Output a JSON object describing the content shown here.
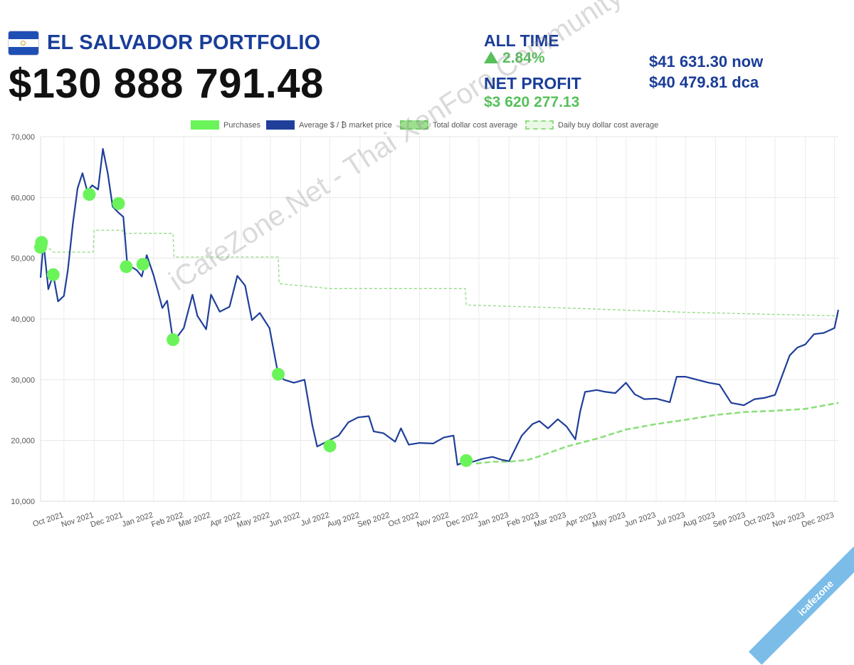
{
  "header": {
    "title": "EL SALVADOR PORTFOLIO",
    "total_value": "$130 888 791.48",
    "all_time_label": "ALL TIME",
    "all_time_change": "2.84%",
    "net_profit_label": "NET PROFIT",
    "net_profit_value": "$3 620 277.13",
    "price_now": "$41 631.30 now",
    "price_dca": "$40 479.81 dca"
  },
  "watermark": "iCafeZone.Net - Thai XenForo Community",
  "corner_badge": "icafezone",
  "colors": {
    "accent": "#1a3d99",
    "green": "#56c05a",
    "purchase": "#6af45a"
  },
  "chart_data": {
    "type": "line",
    "legend": [
      "Purchases",
      "Average $ / ₿ market price",
      "Total dollar cost average",
      "Daily buy dollar cost average"
    ],
    "legend_placement": "top",
    "ylim": [
      10000,
      70000
    ],
    "y_ticks": [
      "10,000",
      "20,000",
      "30,000",
      "40,000",
      "50,000",
      "60,000",
      "70,000"
    ],
    "x_ticks": [
      "Oct 2021",
      "Nov 2021",
      "Dec 2021",
      "Jan 2022",
      "Feb 2022",
      "Mar 2022",
      "Apr 2022",
      "May 2022",
      "Jun 2022",
      "Jul 2022",
      "Aug 2022",
      "Sep 2022",
      "Oct 2022",
      "Nov 2022",
      "Dec 2022",
      "Jan 2023",
      "Feb 2023",
      "Mar 2023",
      "Apr 2023",
      "May 2023",
      "Jun 2023",
      "Jul 2023",
      "Aug 2023",
      "Sep 2023",
      "Oct 2023",
      "Nov 2023",
      "Dec 2023"
    ],
    "grid": true,
    "series": [
      {
        "name": "Average $ / ₿ market price",
        "x": [
          "2021-09-07",
          "2021-09-10",
          "2021-09-15",
          "2021-09-20",
          "2021-09-25",
          "2021-10-01",
          "2021-10-05",
          "2021-10-10",
          "2021-10-15",
          "2021-10-20",
          "2021-10-25",
          "2021-10-30",
          "2021-11-05",
          "2021-11-10",
          "2021-11-15",
          "2021-11-20",
          "2021-11-26",
          "2021-12-01",
          "2021-12-05",
          "2021-12-10",
          "2021-12-15",
          "2021-12-20",
          "2021-12-25",
          "2022-01-01",
          "2022-01-10",
          "2022-01-15",
          "2022-01-21",
          "2022-01-25",
          "2022-02-01",
          "2022-02-10",
          "2022-02-15",
          "2022-02-24",
          "2022-03-01",
          "2022-03-10",
          "2022-03-20",
          "2022-03-28",
          "2022-04-05",
          "2022-04-12",
          "2022-04-20",
          "2022-04-30",
          "2022-05-09",
          "2022-05-15",
          "2022-05-25",
          "2022-06-05",
          "2022-06-13",
          "2022-06-18",
          "2022-06-30",
          "2022-07-10",
          "2022-07-20",
          "2022-07-30",
          "2022-08-10",
          "2022-08-15",
          "2022-08-25",
          "2022-09-06",
          "2022-09-12",
          "2022-09-20",
          "2022-10-01",
          "2022-10-15",
          "2022-10-26",
          "2022-11-05",
          "2022-11-09",
          "2022-11-17",
          "2022-11-25",
          "2022-12-05",
          "2022-12-15",
          "2022-12-25",
          "2023-01-01",
          "2023-01-14",
          "2023-01-25",
          "2023-02-01",
          "2023-02-10",
          "2023-02-20",
          "2023-03-01",
          "2023-03-10",
          "2023-03-15",
          "2023-03-20",
          "2023-04-01",
          "2023-04-10",
          "2023-04-20",
          "2023-05-01",
          "2023-05-10",
          "2023-05-20",
          "2023-06-01",
          "2023-06-15",
          "2023-06-22",
          "2023-07-01",
          "2023-07-13",
          "2023-07-25",
          "2023-08-05",
          "2023-08-17",
          "2023-08-30",
          "2023-09-10",
          "2023-09-20",
          "2023-10-01",
          "2023-10-16",
          "2023-10-24",
          "2023-11-01",
          "2023-11-10",
          "2023-11-20",
          "2023-12-01",
          "2023-12-05"
        ],
        "y": [
          46800,
          52600,
          44900,
          47300,
          42900,
          43800,
          48000,
          55500,
          61500,
          64000,
          61000,
          62000,
          61300,
          68000,
          64000,
          58500,
          57500,
          56800,
          49000,
          48500,
          48000,
          47000,
          50500,
          47200,
          41800,
          43000,
          36500,
          37000,
          38500,
          44000,
          40500,
          38300,
          44000,
          41200,
          42000,
          47100,
          45500,
          39800,
          41000,
          38500,
          30800,
          30000,
          29500,
          30000,
          22500,
          19000,
          20000,
          20800,
          23000,
          23800,
          24000,
          21500,
          21200,
          19800,
          22000,
          19300,
          19600,
          19500,
          20500,
          20800,
          16000,
          16500,
          16500,
          17000,
          17300,
          16800,
          16600,
          20800,
          22700,
          23200,
          22000,
          23500,
          22300,
          20200,
          24800,
          28000,
          28300,
          28000,
          27800,
          29500,
          27600,
          26800,
          26900,
          26300,
          30500,
          30500,
          30000,
          29500,
          29200,
          26200,
          25800,
          26800,
          27000,
          27500,
          34000,
          35300,
          35800,
          37500,
          37700,
          38500,
          41500
        ]
      },
      {
        "name": "Total dollar cost average",
        "x": [
          "2022-11-28",
          "2022-12-15",
          "2023-01-01",
          "2023-01-20",
          "2023-02-01",
          "2023-03-01",
          "2023-04-01",
          "2023-05-01",
          "2023-06-01",
          "2023-07-01",
          "2023-08-01",
          "2023-09-01",
          "2023-10-01",
          "2023-11-01",
          "2023-12-05"
        ],
        "y": [
          16200,
          16500,
          16500,
          16800,
          17400,
          19000,
          20300,
          21800,
          22700,
          23400,
          24200,
          24700,
          24900,
          25200,
          26200
        ]
      },
      {
        "name": "Daily buy dollar cost average",
        "x": [
          "2021-09-07",
          "2021-09-12",
          "2021-09-20",
          "2021-10-31",
          "2021-11-01",
          "2021-11-30",
          "2021-12-01",
          "2022-01-21",
          "2022-01-22",
          "2022-05-09",
          "2022-05-10",
          "2022-07-01",
          "2022-11-17",
          "2022-11-18",
          "2023-03-01",
          "2023-07-01",
          "2023-12-05"
        ],
        "y": [
          52000,
          52200,
          51000,
          51000,
          54600,
          54600,
          54100,
          54100,
          50200,
          50200,
          45800,
          45000,
          45000,
          42300,
          41800,
          41100,
          40500
        ]
      }
    ],
    "purchases": {
      "name": "Purchases",
      "x": [
        "2021-09-07",
        "2021-09-08",
        "2021-09-20",
        "2021-10-27",
        "2021-11-26",
        "2021-12-04",
        "2021-12-21",
        "2022-01-21",
        "2022-05-09",
        "2022-07-01",
        "2022-11-18"
      ],
      "y": [
        51800,
        52600,
        47300,
        60500,
        59000,
        48600,
        49000,
        36600,
        30900,
        19100,
        16700
      ]
    }
  }
}
